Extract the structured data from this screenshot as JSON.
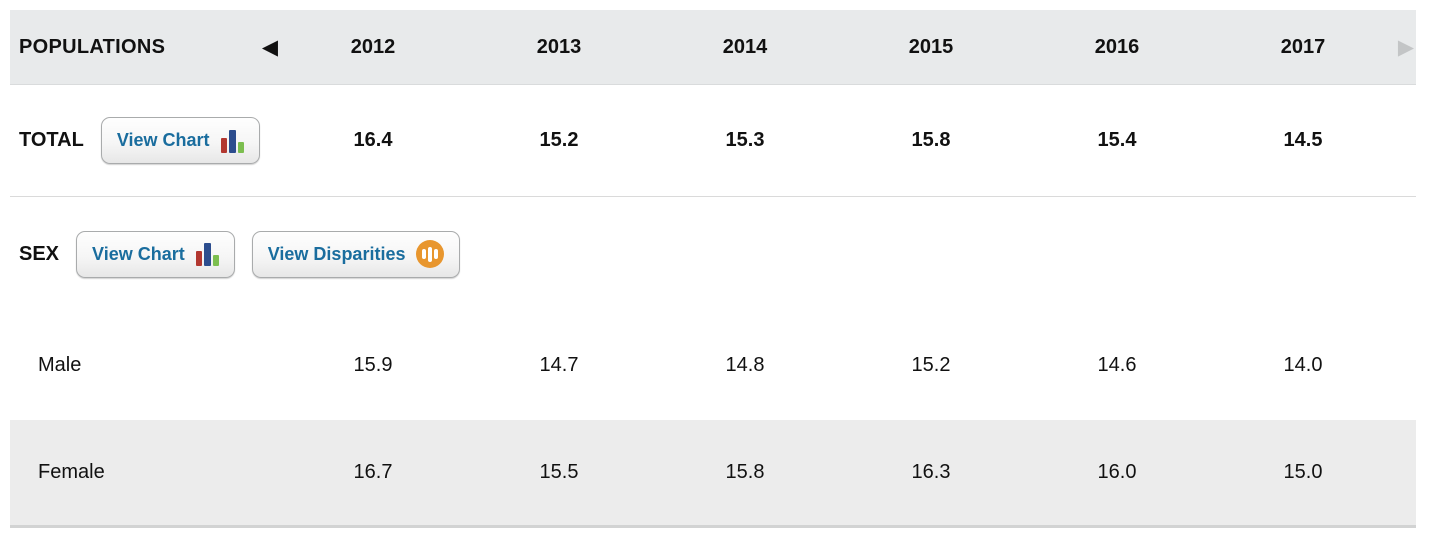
{
  "table": {
    "header": {
      "label": "POPULATIONS",
      "years": [
        "2012",
        "2013",
        "2014",
        "2015",
        "2016",
        "2017"
      ],
      "prev_arrow_glyph": "◀",
      "next_arrow_glyph": "▶"
    },
    "buttons": {
      "view_chart_label": "View Chart",
      "view_disparities_label": "View Disparities"
    },
    "rows": [
      {
        "label": "TOTAL",
        "values": [
          "16.4",
          "15.2",
          "15.3",
          "15.8",
          "15.4",
          "14.5"
        ]
      },
      {
        "label": "SEX",
        "values": []
      },
      {
        "label": "Male",
        "values": [
          "15.9",
          "14.7",
          "14.8",
          "15.2",
          "14.6",
          "14.0"
        ]
      },
      {
        "label": "Female",
        "values": [
          "16.7",
          "15.5",
          "15.8",
          "16.3",
          "16.0",
          "15.0"
        ]
      }
    ],
    "colors": {
      "header_background": "#e8eaeb",
      "shaded_row_background": "#ececec",
      "button_text_blue": "#1a6d9e",
      "chart_icon_red": "#b23730",
      "chart_icon_blue": "#2c4d8e",
      "chart_icon_green": "#7cbe4f",
      "disparities_icon_orange": "#e8962e",
      "disabled_arrow_gray": "#c3c5c6"
    }
  },
  "chart_data": {
    "type": "table",
    "title": "POPULATIONS",
    "categories": [
      "2012",
      "2013",
      "2014",
      "2015",
      "2016",
      "2017"
    ],
    "series": [
      {
        "name": "Total",
        "values": [
          16.4,
          15.2,
          15.3,
          15.8,
          15.4,
          14.5
        ]
      },
      {
        "name": "Male",
        "values": [
          15.9,
          14.7,
          14.8,
          15.2,
          14.6,
          14.0
        ]
      },
      {
        "name": "Female",
        "values": [
          16.7,
          15.5,
          15.8,
          16.3,
          16.0,
          15.0
        ]
      }
    ]
  }
}
